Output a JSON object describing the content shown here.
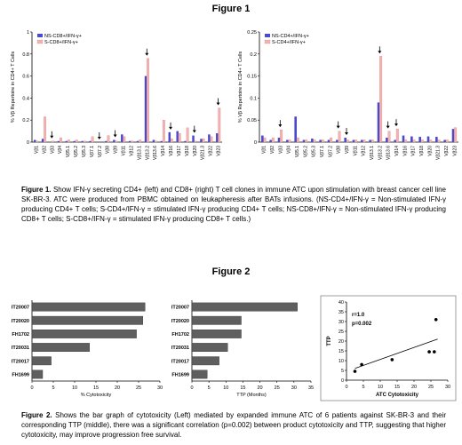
{
  "figure1": {
    "heading": "Figure 1",
    "caption_label": "Figure 1.",
    "caption": "Show IFN-γ secreting CD4+ (left) and CD8+ (right) T cell clones in immune ATC upon stimulation with breast cancer cell line SK-BR-3. ATC were produced from PBMC obtained on leukapheresis after BATs infusions. (NS-CD4+/IFN-γ = Non-stimulated IFN-γ producing CD4+ T cells; S-CD4+/IFN-γ = stimulated IFN-γ producing CD4+ T cells; NS-CD8+/IFN-γ = Non-stimulated IFN-γ producing CD8+ T cells; S-CD8+/IFN-γ = stimulated IFN-γ producing CD8+ T cells.)"
  },
  "figure2": {
    "heading": "Figure 2",
    "caption_label": "Figure 2.",
    "caption": "Shows the bar graph of cytotoxicity (Left) mediated by expanded immune ATC of 6 patients against SK-BR-3 and their corresponding TTP (middle), there was a significant correlation (p=0.002) between product cytotoxicity and TTP, suggesting that higher cytotoxicity, may improve progression free survival."
  },
  "colors": {
    "ns": "#4a4acd",
    "s": "#f4b3b3",
    "s_stroke": "#d98080",
    "hbar": "#5f5f5f",
    "frame": "#888888"
  },
  "chart_data": [
    {
      "type": "bar",
      "ylabel": "% Vβ Repertoire in CD4+ T Cells",
      "ylim": [
        0,
        1.0
      ],
      "yticks": [
        "0",
        "0.2",
        "0.4",
        "0.6",
        "0.8",
        "1"
      ],
      "categories": [
        "Vβ1",
        "Vβ2",
        "Vβ3",
        "Vβ4",
        "Vβ5.1",
        "Vβ5.2",
        "Vβ5.3",
        "Vβ7.1",
        "Vβ7.2",
        "Vβ8",
        "Vβ9",
        "Vβ11",
        "Vβ12",
        "Vβ13.1",
        "Vβ13.2",
        "Vβ13.6",
        "Vβ14",
        "Vβ16",
        "Vβ17",
        "Vβ18",
        "Vβ20",
        "Vβ21.3",
        "Vβ22",
        "Vβ23"
      ],
      "series": [
        {
          "name": "NS-CD8+/IFN-γ+",
          "values": [
            0.02,
            0.03,
            0.0,
            0.01,
            0.01,
            0.01,
            0.01,
            0.01,
            0.0,
            0.01,
            0.02,
            0.07,
            0.01,
            0.01,
            0.6,
            0.02,
            0.01,
            0.09,
            0.1,
            0.01,
            0.06,
            0.03,
            0.07,
            0.08
          ]
        },
        {
          "name": "S-CD8+/IFN-γ+",
          "values": [
            0.01,
            0.23,
            0.01,
            0.04,
            0.02,
            0.02,
            0.01,
            0.05,
            0.0,
            0.06,
            0.01,
            0.05,
            0.01,
            0.02,
            0.76,
            0.01,
            0.2,
            0.03,
            0.08,
            0.13,
            0.01,
            0.03,
            0.05,
            0.31
          ]
        }
      ],
      "arrow_categories": [
        "Vβ3",
        "Vβ7.2",
        "Vβ9",
        "Vβ13.2",
        "Vβ16",
        "Vβ20",
        "Vβ23"
      ]
    },
    {
      "type": "bar",
      "ylabel": "% Vβ Repertoire in CD4+ T Cells",
      "ylim": [
        0,
        0.25
      ],
      "yticks": [
        "0",
        "0.05",
        "0.1",
        "0.15",
        "0.2",
        "0.25"
      ],
      "categories": [
        "Vβ1",
        "Vβ2",
        "Vβ3",
        "Vβ4",
        "Vβ5.1",
        "Vβ5.2",
        "Vβ5.3",
        "Vβ7.1",
        "Vβ7.2",
        "Vβ8",
        "Vβ9",
        "Vβ11",
        "Vβ12",
        "Vβ13.1",
        "Vβ13.2",
        "Vβ13.6",
        "Vβ14",
        "Vβ16",
        "Vβ17",
        "Vβ18",
        "Vβ20",
        "Vβ21.3",
        "Vβ22",
        "Vβ23"
      ],
      "series": [
        {
          "name": "NS-CD4+/IFN-γ+",
          "values": [
            0.015,
            0.005,
            0.01,
            0.005,
            0.058,
            0.005,
            0.008,
            0.005,
            0.005,
            0.005,
            0.01,
            0.005,
            0.005,
            0.005,
            0.09,
            0.01,
            0.005,
            0.015,
            0.013,
            0.012,
            0.013,
            0.012,
            0.005,
            0.03
          ]
        },
        {
          "name": "S-CD4+/IFN-γ+",
          "values": [
            0.01,
            0.01,
            0.028,
            0.005,
            0.01,
            0.005,
            0.005,
            0.005,
            0.01,
            0.025,
            0.005,
            0.005,
            0.005,
            0.005,
            0.195,
            0.025,
            0.03,
            0.005,
            0.005,
            0.005,
            0.005,
            0.005,
            0.005,
            0.033
          ]
        }
      ],
      "arrow_categories": [
        "Vβ3",
        "Vβ8",
        "Vβ9",
        "Vβ13.2",
        "Vβ13.6",
        "Vβ14"
      ]
    },
    {
      "type": "bar",
      "orientation": "horizontal",
      "xlabel": "% Cytotoxicity",
      "xlim": [
        0,
        30
      ],
      "xticks": [
        "0",
        "5",
        "10",
        "15",
        "20",
        "25",
        "30"
      ],
      "categories": [
        "IT20007",
        "IT20020",
        "FH1702",
        "IT20031",
        "IT20017",
        "FH1699"
      ],
      "values": [
        26.5,
        26,
        24.5,
        13.5,
        4.5,
        2.5
      ]
    },
    {
      "type": "bar",
      "orientation": "horizontal",
      "xlabel": "TTP (Months)",
      "xlim": [
        0,
        35
      ],
      "xticks": [
        "0",
        "5",
        "10",
        "15",
        "20",
        "25",
        "30",
        "35"
      ],
      "categories": [
        "IT20007",
        "IT20020",
        "FH1702",
        "IT20031",
        "IT20017",
        "FH1699"
      ],
      "values": [
        31,
        14.5,
        14.5,
        10.5,
        8,
        4.5
      ]
    },
    {
      "type": "scatter",
      "xlabel": "ATC Cytotoxicity",
      "ylabel": "TTP",
      "xlim": [
        0,
        30
      ],
      "ylim": [
        0,
        40
      ],
      "xticks": [
        "0",
        "5",
        "10",
        "15",
        "20",
        "25",
        "30"
      ],
      "yticks": [
        "0",
        "5",
        "10",
        "15",
        "20",
        "25",
        "30",
        "35",
        "40"
      ],
      "points": [
        [
          2.5,
          4.5
        ],
        [
          4.5,
          8
        ],
        [
          13.5,
          10.5
        ],
        [
          24.5,
          14.5
        ],
        [
          26,
          14.5
        ],
        [
          26.5,
          31
        ]
      ],
      "trend": [
        [
          2.5,
          6
        ],
        [
          27,
          21
        ]
      ],
      "annotations": [
        "r=1.0",
        "p=0.002"
      ]
    }
  ]
}
